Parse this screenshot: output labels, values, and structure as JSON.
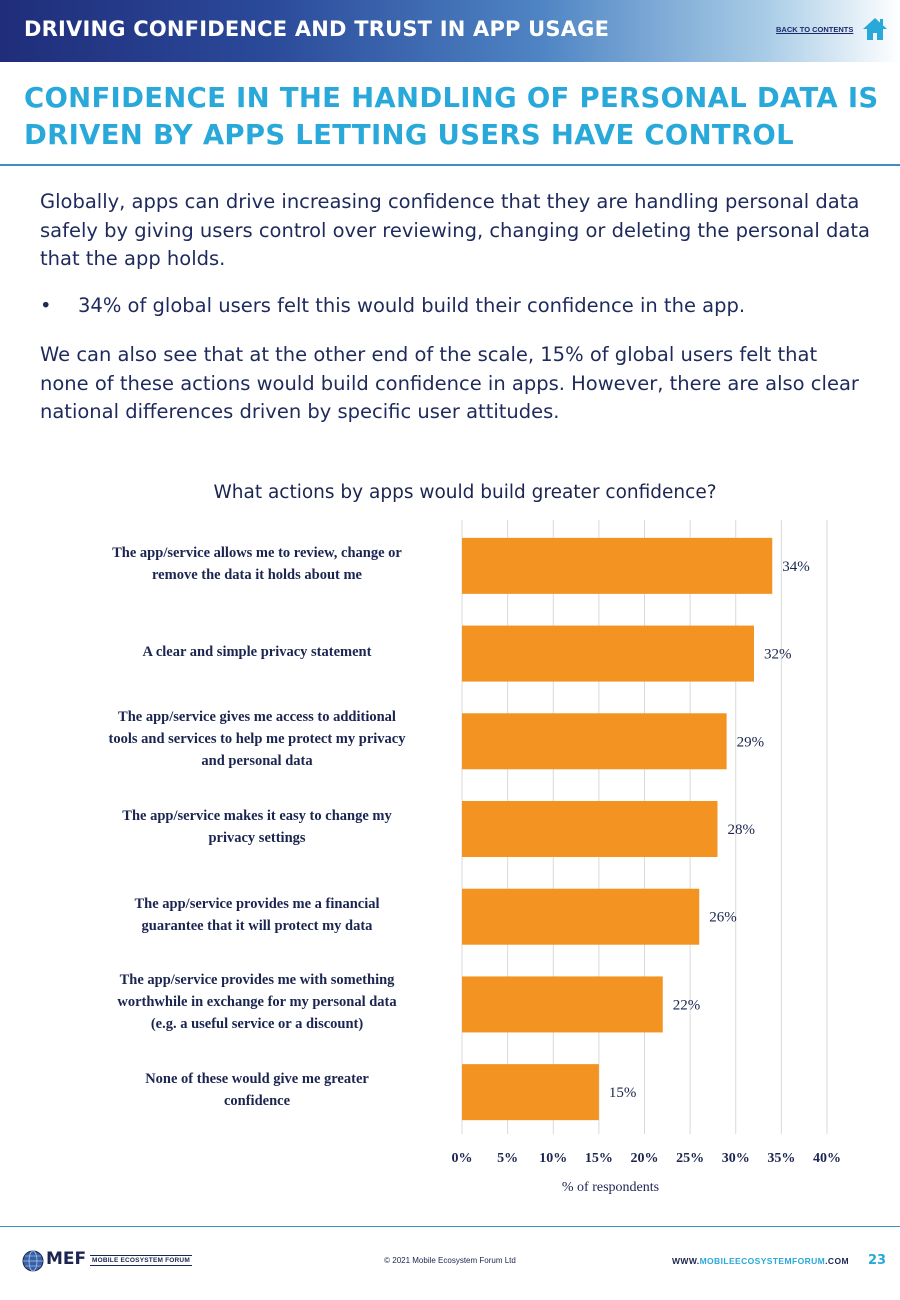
{
  "header": {
    "title": "DRIVING CONFIDENCE AND TRUST IN APP USAGE",
    "back_link": "BACK TO CONTENTS",
    "home_icon": "home-icon",
    "accent_color": "#29a9d9"
  },
  "section": {
    "title_line1": "CONFIDENCE IN THE HANDLING OF PERSONAL DATA IS",
    "title_line2": "DRIVEN BY APPS LETTING USERS HAVE CONTROL"
  },
  "body": {
    "intro": "Globally, apps can drive increasing confidence that they are handling personal data safely by giving users control over reviewing, changing or deleting the personal data that the app holds.",
    "bullet_marker": "•",
    "bullet": "34% of global users felt this would build their confidence in the app.",
    "para2": "We can also see that at the other end of the scale, 15% of global users felt that none of these actions would build confidence in apps. However, there are also clear national differences driven by specific user attitudes."
  },
  "chart_data": {
    "type": "bar",
    "orientation": "horizontal",
    "title": "What actions by apps would build greater confidence?",
    "xlabel": "% of respondents",
    "ylabel": "",
    "xlim": [
      0,
      40
    ],
    "xticks": [
      "0%",
      "5%",
      "10%",
      "15%",
      "20%",
      "25%",
      "30%",
      "35%",
      "40%"
    ],
    "xtick_values": [
      0,
      5,
      10,
      15,
      20,
      25,
      30,
      35,
      40
    ],
    "grid": true,
    "bar_color": "#f39322",
    "categories": [
      [
        "The app/service allows me to review, change or",
        "remove the data it holds about me"
      ],
      [
        "A clear and simple privacy statement"
      ],
      [
        "The app/service gives me access to additional",
        "tools and services to help me protect my privacy",
        "and personal data"
      ],
      [
        "The app/service makes it easy to change my",
        "privacy settings"
      ],
      [
        "The app/service provides me a financial",
        "guarantee that it will protect my data"
      ],
      [
        "The app/service provides me with something",
        "worthwhile in exchange for my personal data",
        "(e.g. a useful service or a discount)"
      ],
      [
        "None of these would give me greater",
        "confidence"
      ]
    ],
    "values": [
      34,
      32,
      29,
      28,
      26,
      22,
      15
    ],
    "data_labels": [
      "34%",
      "32%",
      "29%",
      "28%",
      "26%",
      "22%",
      "15%"
    ]
  },
  "footer": {
    "copyright": "© 2021 Mobile Ecosystem Forum Ltd",
    "logo_text": "MEF",
    "logo_subtext": "MOBILE ECOSYSTEM FORUM",
    "website_prefix": "WWW.",
    "website_highlight": "MOBILEECOSYSTEMFORUM",
    "website_suffix": ".COM",
    "page_number": "23"
  }
}
